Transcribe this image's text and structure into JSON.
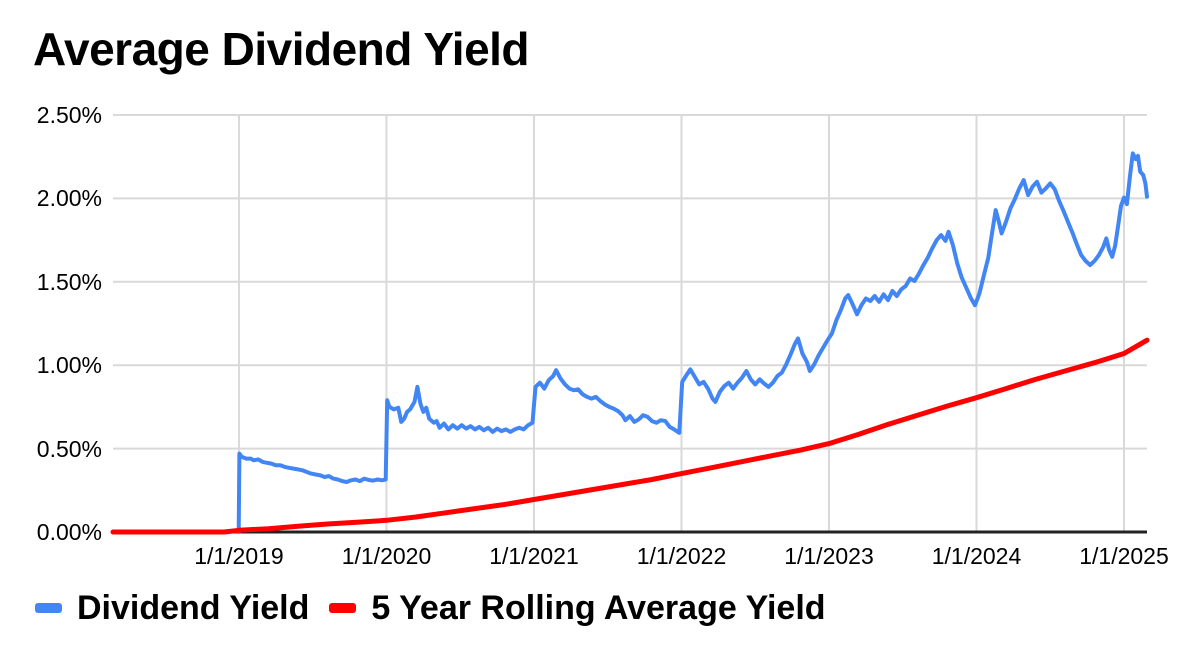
{
  "chart_data": {
    "type": "line",
    "title": "Average Dividend Yield",
    "x_axis": {
      "range": [
        2018.146,
        2025.156
      ],
      "ticks": [
        {
          "value": 2019,
          "label": "1/1/2019"
        },
        {
          "value": 2020,
          "label": "1/1/2020"
        },
        {
          "value": 2021,
          "label": "1/1/2021"
        },
        {
          "value": 2022,
          "label": "1/1/2022"
        },
        {
          "value": 2023,
          "label": "1/1/2023"
        },
        {
          "value": 2024,
          "label": "1/1/2024"
        },
        {
          "value": 2025,
          "label": "1/1/2025"
        }
      ]
    },
    "y_axis": {
      "range": [
        0,
        2.5
      ],
      "ticks": [
        {
          "value": 0.0,
          "label": "0.00%"
        },
        {
          "value": 0.5,
          "label": "0.50%"
        },
        {
          "value": 1.0,
          "label": "1.00%"
        },
        {
          "value": 1.5,
          "label": "1.50%"
        },
        {
          "value": 2.0,
          "label": "2.00%"
        },
        {
          "value": 2.5,
          "label": "2.50%"
        }
      ]
    },
    "grid": {
      "color": "#d9d9d9",
      "axis_color": "#222222"
    },
    "legend_position": "bottom",
    "series": [
      {
        "name": "Dividend Yield",
        "color": "#4285f4",
        "stroke_width": 4,
        "points": [
          [
            2018.998,
            0.0
          ],
          [
            2019.003,
            0.47
          ],
          [
            2019.02,
            0.45
          ],
          [
            2019.05,
            0.44
          ],
          [
            2019.08,
            0.44
          ],
          [
            2019.1,
            0.43
          ],
          [
            2019.13,
            0.435
          ],
          [
            2019.16,
            0.42
          ],
          [
            2019.19,
            0.415
          ],
          [
            2019.22,
            0.41
          ],
          [
            2019.25,
            0.4
          ],
          [
            2019.28,
            0.4
          ],
          [
            2019.31,
            0.39
          ],
          [
            2019.34,
            0.385
          ],
          [
            2019.37,
            0.38
          ],
          [
            2019.4,
            0.375
          ],
          [
            2019.43,
            0.37
          ],
          [
            2019.46,
            0.36
          ],
          [
            2019.49,
            0.35
          ],
          [
            2019.52,
            0.345
          ],
          [
            2019.55,
            0.34
          ],
          [
            2019.58,
            0.33
          ],
          [
            2019.61,
            0.335
          ],
          [
            2019.64,
            0.32
          ],
          [
            2019.67,
            0.315
          ],
          [
            2019.7,
            0.305
          ],
          [
            2019.73,
            0.3
          ],
          [
            2019.76,
            0.31
          ],
          [
            2019.79,
            0.315
          ],
          [
            2019.82,
            0.305
          ],
          [
            2019.85,
            0.32
          ],
          [
            2019.88,
            0.312
          ],
          [
            2019.91,
            0.308
          ],
          [
            2019.94,
            0.315
          ],
          [
            2019.97,
            0.31
          ],
          [
            2019.995,
            0.315
          ],
          [
            2020.005,
            0.79
          ],
          [
            2020.02,
            0.75
          ],
          [
            2020.05,
            0.735
          ],
          [
            2020.08,
            0.745
          ],
          [
            2020.1,
            0.66
          ],
          [
            2020.12,
            0.68
          ],
          [
            2020.14,
            0.72
          ],
          [
            2020.16,
            0.735
          ],
          [
            2020.19,
            0.78
          ],
          [
            2020.21,
            0.87
          ],
          [
            2020.23,
            0.77
          ],
          [
            2020.25,
            0.72
          ],
          [
            2020.27,
            0.745
          ],
          [
            2020.29,
            0.68
          ],
          [
            2020.32,
            0.655
          ],
          [
            2020.34,
            0.665
          ],
          [
            2020.36,
            0.625
          ],
          [
            2020.39,
            0.65
          ],
          [
            2020.42,
            0.615
          ],
          [
            2020.45,
            0.64
          ],
          [
            2020.48,
            0.62
          ],
          [
            2020.51,
            0.64
          ],
          [
            2020.54,
            0.62
          ],
          [
            2020.57,
            0.635
          ],
          [
            2020.6,
            0.615
          ],
          [
            2020.63,
            0.63
          ],
          [
            2020.66,
            0.61
          ],
          [
            2020.69,
            0.625
          ],
          [
            2020.72,
            0.6
          ],
          [
            2020.75,
            0.62
          ],
          [
            2020.78,
            0.605
          ],
          [
            2020.81,
            0.615
          ],
          [
            2020.84,
            0.6
          ],
          [
            2020.87,
            0.615
          ],
          [
            2020.9,
            0.625
          ],
          [
            2020.93,
            0.615
          ],
          [
            2020.96,
            0.64
          ],
          [
            2020.99,
            0.655
          ],
          [
            2021.01,
            0.87
          ],
          [
            2021.04,
            0.895
          ],
          [
            2021.07,
            0.86
          ],
          [
            2021.1,
            0.91
          ],
          [
            2021.13,
            0.935
          ],
          [
            2021.15,
            0.97
          ],
          [
            2021.18,
            0.92
          ],
          [
            2021.21,
            0.885
          ],
          [
            2021.24,
            0.86
          ],
          [
            2021.27,
            0.85
          ],
          [
            2021.3,
            0.855
          ],
          [
            2021.33,
            0.825
          ],
          [
            2021.36,
            0.81
          ],
          [
            2021.39,
            0.8
          ],
          [
            2021.42,
            0.81
          ],
          [
            2021.45,
            0.785
          ],
          [
            2021.48,
            0.765
          ],
          [
            2021.51,
            0.75
          ],
          [
            2021.54,
            0.74
          ],
          [
            2021.57,
            0.725
          ],
          [
            2021.6,
            0.7
          ],
          [
            2021.62,
            0.67
          ],
          [
            2021.65,
            0.695
          ],
          [
            2021.68,
            0.66
          ],
          [
            2021.71,
            0.675
          ],
          [
            2021.74,
            0.7
          ],
          [
            2021.77,
            0.69
          ],
          [
            2021.8,
            0.665
          ],
          [
            2021.83,
            0.655
          ],
          [
            2021.86,
            0.67
          ],
          [
            2021.89,
            0.665
          ],
          [
            2021.92,
            0.63
          ],
          [
            2021.95,
            0.615
          ],
          [
            2021.985,
            0.595
          ],
          [
            2022.005,
            0.9
          ],
          [
            2022.03,
            0.935
          ],
          [
            2022.06,
            0.975
          ],
          [
            2022.09,
            0.93
          ],
          [
            2022.12,
            0.885
          ],
          [
            2022.15,
            0.9
          ],
          [
            2022.18,
            0.86
          ],
          [
            2022.21,
            0.8
          ],
          [
            2022.23,
            0.78
          ],
          [
            2022.26,
            0.84
          ],
          [
            2022.29,
            0.875
          ],
          [
            2022.32,
            0.895
          ],
          [
            2022.35,
            0.86
          ],
          [
            2022.38,
            0.895
          ],
          [
            2022.41,
            0.925
          ],
          [
            2022.44,
            0.965
          ],
          [
            2022.47,
            0.915
          ],
          [
            2022.5,
            0.885
          ],
          [
            2022.53,
            0.915
          ],
          [
            2022.56,
            0.89
          ],
          [
            2022.59,
            0.87
          ],
          [
            2022.62,
            0.895
          ],
          [
            2022.65,
            0.935
          ],
          [
            2022.68,
            0.955
          ],
          [
            2022.71,
            1.005
          ],
          [
            2022.74,
            1.065
          ],
          [
            2022.77,
            1.13
          ],
          [
            2022.79,
            1.16
          ],
          [
            2022.82,
            1.07
          ],
          [
            2022.85,
            1.02
          ],
          [
            2022.87,
            0.965
          ],
          [
            2022.9,
            1.005
          ],
          [
            2022.93,
            1.06
          ],
          [
            2022.96,
            1.105
          ],
          [
            2022.99,
            1.15
          ],
          [
            2023.02,
            1.19
          ],
          [
            2023.05,
            1.27
          ],
          [
            2023.08,
            1.33
          ],
          [
            2023.11,
            1.4
          ],
          [
            2023.13,
            1.42
          ],
          [
            2023.16,
            1.365
          ],
          [
            2023.19,
            1.305
          ],
          [
            2023.22,
            1.36
          ],
          [
            2023.25,
            1.4
          ],
          [
            2023.28,
            1.385
          ],
          [
            2023.31,
            1.415
          ],
          [
            2023.34,
            1.38
          ],
          [
            2023.37,
            1.425
          ],
          [
            2023.4,
            1.39
          ],
          [
            2023.43,
            1.445
          ],
          [
            2023.46,
            1.415
          ],
          [
            2023.49,
            1.455
          ],
          [
            2023.52,
            1.475
          ],
          [
            2023.55,
            1.52
          ],
          [
            2023.58,
            1.505
          ],
          [
            2023.61,
            1.55
          ],
          [
            2023.64,
            1.6
          ],
          [
            2023.67,
            1.645
          ],
          [
            2023.7,
            1.7
          ],
          [
            2023.73,
            1.75
          ],
          [
            2023.76,
            1.78
          ],
          [
            2023.79,
            1.745
          ],
          [
            2023.81,
            1.8
          ],
          [
            2023.84,
            1.72
          ],
          [
            2023.87,
            1.61
          ],
          [
            2023.9,
            1.525
          ],
          [
            2023.93,
            1.465
          ],
          [
            2023.96,
            1.405
          ],
          [
            2023.99,
            1.36
          ],
          [
            2024.02,
            1.43
          ],
          [
            2024.05,
            1.54
          ],
          [
            2024.08,
            1.645
          ],
          [
            2024.1,
            1.76
          ],
          [
            2024.13,
            1.93
          ],
          [
            2024.15,
            1.865
          ],
          [
            2024.17,
            1.79
          ],
          [
            2024.2,
            1.86
          ],
          [
            2024.23,
            1.94
          ],
          [
            2024.26,
            1.995
          ],
          [
            2024.29,
            2.06
          ],
          [
            2024.32,
            2.11
          ],
          [
            2024.35,
            2.02
          ],
          [
            2024.38,
            2.07
          ],
          [
            2024.41,
            2.1
          ],
          [
            2024.44,
            2.035
          ],
          [
            2024.47,
            2.06
          ],
          [
            2024.5,
            2.09
          ],
          [
            2024.53,
            2.055
          ],
          [
            2024.56,
            1.985
          ],
          [
            2024.59,
            1.925
          ],
          [
            2024.62,
            1.86
          ],
          [
            2024.65,
            1.795
          ],
          [
            2024.68,
            1.725
          ],
          [
            2024.71,
            1.66
          ],
          [
            2024.74,
            1.625
          ],
          [
            2024.77,
            1.6
          ],
          [
            2024.8,
            1.625
          ],
          [
            2024.83,
            1.66
          ],
          [
            2024.86,
            1.71
          ],
          [
            2024.88,
            1.76
          ],
          [
            2024.9,
            1.69
          ],
          [
            2024.92,
            1.65
          ],
          [
            2024.94,
            1.715
          ],
          [
            2024.96,
            1.835
          ],
          [
            2024.98,
            1.955
          ],
          [
            2025.0,
            2.005
          ],
          [
            2025.02,
            1.965
          ],
          [
            2025.04,
            2.13
          ],
          [
            2025.06,
            2.27
          ],
          [
            2025.08,
            2.235
          ],
          [
            2025.095,
            2.255
          ],
          [
            2025.11,
            2.16
          ],
          [
            2025.13,
            2.14
          ],
          [
            2025.145,
            2.09
          ],
          [
            2025.156,
            2.01
          ]
        ]
      },
      {
        "name": "5 Year Rolling Average Yield",
        "color": "#ff0000",
        "stroke_width": 5,
        "points": [
          [
            2018.146,
            0.0
          ],
          [
            2018.6,
            0.0
          ],
          [
            2018.9,
            0.0
          ],
          [
            2019.0,
            0.01
          ],
          [
            2019.2,
            0.02
          ],
          [
            2019.4,
            0.035
          ],
          [
            2019.6,
            0.048
          ],
          [
            2019.8,
            0.058
          ],
          [
            2020.0,
            0.07
          ],
          [
            2020.2,
            0.09
          ],
          [
            2020.4,
            0.115
          ],
          [
            2020.6,
            0.14
          ],
          [
            2020.8,
            0.165
          ],
          [
            2021.0,
            0.195
          ],
          [
            2021.2,
            0.225
          ],
          [
            2021.4,
            0.255
          ],
          [
            2021.6,
            0.285
          ],
          [
            2021.8,
            0.315
          ],
          [
            2022.0,
            0.35
          ],
          [
            2022.2,
            0.385
          ],
          [
            2022.4,
            0.42
          ],
          [
            2022.6,
            0.455
          ],
          [
            2022.8,
            0.49
          ],
          [
            2023.0,
            0.53
          ],
          [
            2023.2,
            0.585
          ],
          [
            2023.4,
            0.645
          ],
          [
            2023.6,
            0.7
          ],
          [
            2023.8,
            0.755
          ],
          [
            2024.0,
            0.805
          ],
          [
            2024.2,
            0.86
          ],
          [
            2024.4,
            0.915
          ],
          [
            2024.6,
            0.965
          ],
          [
            2024.8,
            1.015
          ],
          [
            2025.0,
            1.07
          ],
          [
            2025.156,
            1.15
          ]
        ]
      }
    ]
  }
}
